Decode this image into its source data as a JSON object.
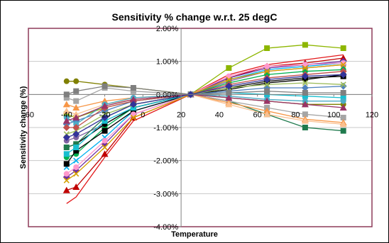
{
  "chart_data": {
    "type": "line",
    "title": "Sensitivity % change w.r.t. 25 degC",
    "xlabel": "Temperature",
    "ylabel": "Sensitivity change (%)",
    "xlim": [
      -60,
      120
    ],
    "ylim": [
      -4,
      2
    ],
    "x_ticks": [
      "-60",
      "-40",
      "-20",
      "0",
      "20",
      "40",
      "60",
      "80",
      "100",
      "120"
    ],
    "y_ticks": [
      "2.00%",
      "1.00%",
      "0.00%",
      "-1.00%",
      "-2.00%",
      "-3.00%",
      "-4.00%"
    ],
    "grid": true,
    "legend": "none",
    "x": [
      -40,
      -35,
      -20,
      -5,
      25,
      45,
      65,
      85,
      105
    ],
    "series": [
      {
        "color": "#8db600",
        "marker": "square",
        "values": [
          -0.6,
          -0.7,
          -0.4,
          -0.2,
          0,
          0.8,
          1.4,
          1.5,
          1.4
        ]
      },
      {
        "color": "#e31a1c",
        "marker": "none",
        "values": [
          -3.3,
          -3.1,
          -1.9,
          -0.8,
          0,
          0.6,
          0.9,
          1.05,
          1.2
        ]
      },
      {
        "color": "#c00000",
        "marker": "triangle",
        "values": [
          -2.9,
          -2.8,
          -1.8,
          -0.7,
          0,
          0.5,
          0.85,
          0.95,
          1.1
        ]
      },
      {
        "color": "#7030a0",
        "marker": "diamond",
        "values": [
          -2.5,
          -2.3,
          -1.5,
          -0.6,
          0,
          0.5,
          0.8,
          0.9,
          1.0
        ]
      },
      {
        "color": "#00b0f0",
        "marker": "x",
        "values": [
          -2.2,
          -2.0,
          -1.3,
          -0.5,
          0,
          0.45,
          0.75,
          0.85,
          0.95
        ]
      },
      {
        "color": "#8064a2",
        "marker": "circle",
        "values": [
          -1.4,
          -1.3,
          -0.9,
          -0.4,
          0,
          0.4,
          0.7,
          0.8,
          0.9
        ]
      },
      {
        "color": "#00b050",
        "marker": "circle",
        "values": [
          -1.9,
          -1.8,
          -1.0,
          -0.4,
          0,
          0.35,
          0.6,
          0.7,
          0.75
        ]
      },
      {
        "color": "#000000",
        "marker": "square",
        "values": [
          -2.1,
          -1.7,
          -1.1,
          -0.5,
          0,
          0.2,
          0.4,
          0.5,
          0.55
        ]
      },
      {
        "color": "#000000",
        "marker": "circle",
        "values": [
          -1.6,
          -1.5,
          -0.9,
          -0.4,
          0,
          0.15,
          0.35,
          0.45,
          0.6
        ]
      },
      {
        "color": "#1f7a4d",
        "marker": "square",
        "values": [
          -1.6,
          -1.5,
          -0.7,
          -0.3,
          0,
          -0.2,
          -0.6,
          -1.0,
          -1.1
        ]
      },
      {
        "color": "#808000",
        "marker": "circle",
        "values": [
          0.4,
          0.4,
          0.3,
          0.2,
          0,
          -0.1,
          -0.2,
          -0.3,
          -0.3
        ]
      },
      {
        "color": "#a5a5a5",
        "marker": "square",
        "values": [
          -0.1,
          -0.2,
          0.2,
          0.1,
          0,
          -0.2,
          -0.4,
          -0.6,
          -0.7
        ]
      },
      {
        "color": "#f79646",
        "marker": "triangle",
        "values": [
          -0.3,
          -0.4,
          -0.2,
          -0.1,
          0,
          -0.25,
          -0.5,
          -0.75,
          -0.85
        ]
      },
      {
        "color": "#fac090",
        "marker": "triangle",
        "values": [
          -0.5,
          -0.6,
          -0.3,
          -0.15,
          0,
          -0.3,
          -0.6,
          -0.8,
          -0.9
        ]
      },
      {
        "color": "#4f81bd",
        "marker": "diamond",
        "values": [
          -0.9,
          -0.8,
          -0.5,
          -0.2,
          0,
          0.1,
          0.2,
          0.2,
          0.25
        ]
      },
      {
        "color": "#17becf",
        "marker": "square",
        "values": [
          -1.8,
          -1.6,
          -0.8,
          -0.4,
          0,
          0.05,
          0.0,
          -0.05,
          -0.1
        ]
      },
      {
        "color": "#9bbb59",
        "marker": "x",
        "values": [
          -1.2,
          -1.1,
          -0.6,
          -0.3,
          0,
          0.2,
          0.3,
          0.35,
          0.3
        ]
      },
      {
        "color": "#4bacc6",
        "marker": "circle",
        "values": [
          -0.7,
          -0.9,
          -0.3,
          -0.1,
          0,
          -0.05,
          -0.15,
          -0.2,
          -0.2
        ]
      },
      {
        "color": "#c0504d",
        "marker": "diamond",
        "values": [
          -1.0,
          -1.0,
          -0.4,
          -0.2,
          0,
          0.3,
          0.5,
          0.6,
          0.7
        ]
      },
      {
        "color": "#ff99cc",
        "marker": "circle",
        "values": [
          -2.4,
          -2.2,
          -1.4,
          -0.6,
          0,
          0.55,
          0.85,
          0.9,
          0.95
        ]
      },
      {
        "color": "#993366",
        "marker": "triangle",
        "values": [
          -0.8,
          -0.7,
          -0.35,
          -0.15,
          0,
          -0.1,
          -0.2,
          -0.3,
          -0.4
        ]
      },
      {
        "color": "#d4a000",
        "marker": "x",
        "values": [
          -2.6,
          -2.4,
          -1.6,
          -0.7,
          0,
          0.45,
          0.7,
          0.8,
          0.9
        ]
      },
      {
        "color": "#7f7f7f",
        "marker": "square",
        "values": [
          0.0,
          0.1,
          0.25,
          0.2,
          0,
          0.05,
          0.1,
          0.05,
          0.05
        ]
      },
      {
        "color": "#333399",
        "marker": "diamond",
        "values": [
          -1.3,
          -1.2,
          -0.7,
          -0.3,
          0,
          0.25,
          0.45,
          0.55,
          0.6
        ]
      }
    ]
  }
}
